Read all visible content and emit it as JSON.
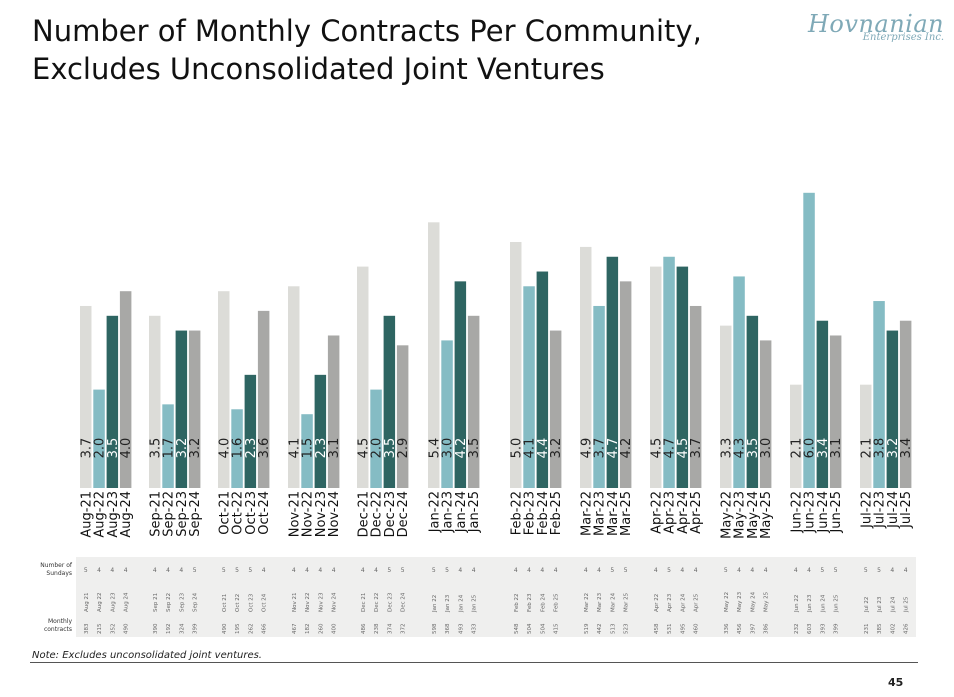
{
  "title_line1": "Number of Monthly Contracts Per Community,",
  "title_line2": "Excludes Unconsolidated Joint Ventures",
  "logo": {
    "name": "Hovnanian",
    "sub": "Enterprises Inc."
  },
  "note": "Note: Excludes unconsolidated joint ventures.",
  "page_number": "45",
  "colors": [
    "#dcdcd8",
    "#85bcc4",
    "#2e6562",
    "#a8a8a6"
  ],
  "chart_data": {
    "type": "bar",
    "title": "Number of Monthly Contracts Per Community, Excludes Unconsolidated Joint Ventures",
    "ylim": [
      0,
      6.2
    ],
    "groups": [
      {
        "labels": [
          "Aug-21",
          "Aug-22",
          "Aug-23",
          "Aug-24"
        ],
        "values": [
          3.7,
          2.0,
          3.5,
          4.0
        ],
        "sundays": [
          "5",
          "4",
          "4",
          "4"
        ],
        "contracts": [
          "383",
          "215",
          "352",
          "490"
        ]
      },
      {
        "labels": [
          "Sep-21",
          "Sep-22",
          "Sep-23",
          "Sep-24"
        ],
        "values": [
          3.5,
          1.7,
          3.2,
          3.2
        ],
        "sundays": [
          "4",
          "4",
          "4",
          "5"
        ],
        "contracts": [
          "390",
          "192",
          "324",
          "399"
        ]
      },
      {
        "labels": [
          "Oct-21",
          "Oct-22",
          "Oct-23",
          "Oct-24"
        ],
        "values": [
          4.0,
          1.6,
          2.3,
          3.6
        ],
        "sundays": [
          "5",
          "5",
          "5",
          "4"
        ],
        "contracts": [
          "490",
          "195",
          "262",
          "466"
        ]
      },
      {
        "labels": [
          "Nov-21",
          "Nov-22",
          "Nov-23",
          "Nov-24"
        ],
        "values": [
          4.1,
          1.5,
          2.3,
          3.1
        ],
        "sundays": [
          "4",
          "4",
          "4",
          "4"
        ],
        "contracts": [
          "467",
          "182",
          "260",
          "400"
        ]
      },
      {
        "labels": [
          "Dec-21",
          "Dec-22",
          "Dec-23",
          "Dec-24"
        ],
        "values": [
          4.5,
          2.0,
          3.5,
          2.9
        ],
        "sundays": [
          "4",
          "4",
          "5",
          "5"
        ],
        "contracts": [
          "486",
          "238",
          "374",
          "372"
        ]
      },
      {
        "labels": [
          "Jan-22",
          "Jan-23",
          "Jan-24",
          "Jan-25"
        ],
        "values": [
          5.4,
          3.0,
          4.2,
          3.5
        ],
        "sundays": [
          "5",
          "5",
          "4",
          "4"
        ],
        "contracts": [
          "598",
          "368",
          "493",
          "433"
        ]
      },
      {
        "labels": [
          "Feb-22",
          "Feb-23",
          "Feb-24",
          "Feb-25"
        ],
        "values": [
          5.0,
          4.1,
          4.4,
          3.2
        ],
        "sundays": [
          "4",
          "4",
          "4",
          "4"
        ],
        "contracts": [
          "548",
          "504",
          "504",
          "415"
        ]
      },
      {
        "labels": [
          "Mar-22",
          "Mar-23",
          "Mar-24",
          "Mar-25"
        ],
        "values": [
          4.9,
          3.7,
          4.7,
          4.2
        ],
        "sundays": [
          "4",
          "4",
          "5",
          "5"
        ],
        "contracts": [
          "519",
          "442",
          "513",
          "523"
        ]
      },
      {
        "labels": [
          "Apr-22",
          "Apr-23",
          "Apr-24",
          "Apr-25"
        ],
        "values": [
          4.5,
          4.7,
          4.5,
          3.7
        ],
        "sundays": [
          "4",
          "5",
          "4",
          "4"
        ],
        "contracts": [
          "458",
          "531",
          "495",
          "460"
        ]
      },
      {
        "labels": [
          "May-22",
          "May-23",
          "May-24",
          "May-25"
        ],
        "values": [
          3.3,
          4.3,
          3.5,
          3.0
        ],
        "sundays": [
          "5",
          "4",
          "4",
          "4"
        ],
        "contracts": [
          "336",
          "456",
          "397",
          "386"
        ]
      },
      {
        "labels": [
          "Jun-22",
          "Jun-23",
          "Jun-24",
          "Jun-25"
        ],
        "values": [
          2.1,
          6.0,
          3.4,
          3.1
        ],
        "sundays": [
          "4",
          "4",
          "5",
          "5"
        ],
        "contracts": [
          "232",
          "603",
          "393",
          "399"
        ]
      },
      {
        "labels": [
          "Jul-22",
          "Jul-23",
          "Jul-24",
          "Jul-25"
        ],
        "values": [
          2.1,
          3.8,
          3.2,
          3.4
        ],
        "sundays": [
          "5",
          "5",
          "4",
          "4"
        ],
        "contracts": [
          "231",
          "385",
          "402",
          "426"
        ]
      }
    ],
    "table_row_labels": {
      "sundays": [
        "Number of",
        "Sundays"
      ],
      "contracts": [
        "Monthly",
        "contracts"
      ]
    }
  }
}
